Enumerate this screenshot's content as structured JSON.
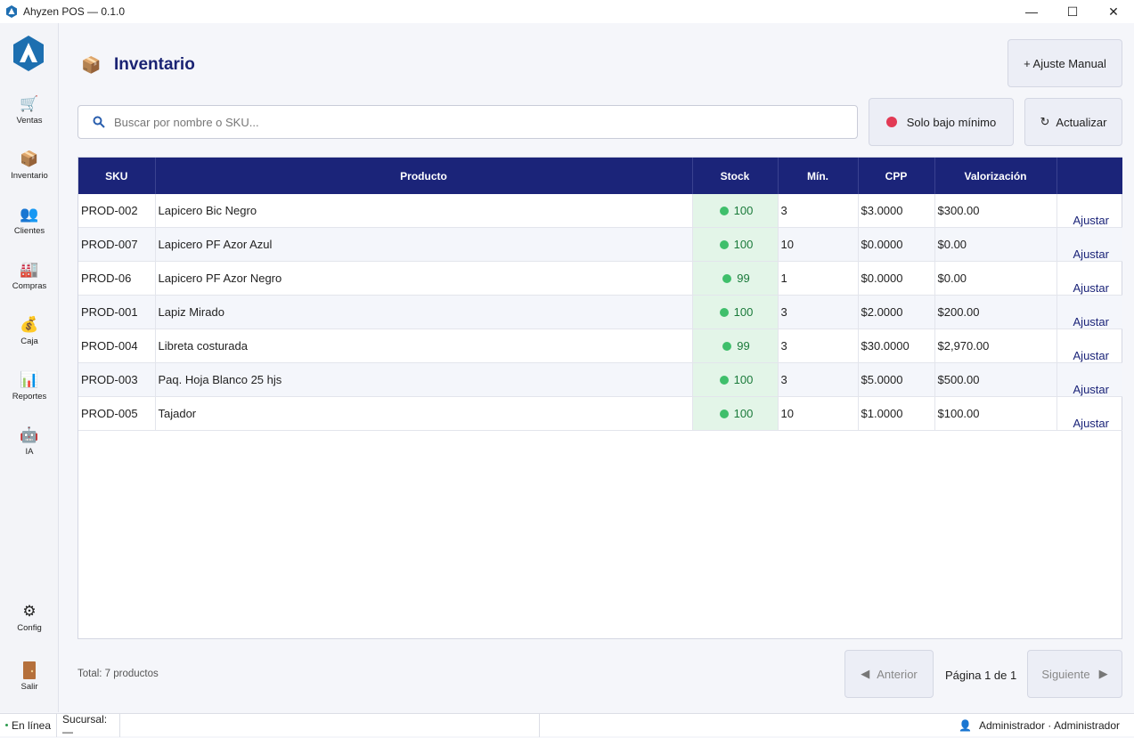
{
  "window": {
    "title": "Ahyzen POS — 0.1.0",
    "minimize": "—",
    "maximize": "☐",
    "close": "✕"
  },
  "sidebar": {
    "items": [
      {
        "label": "Ventas",
        "icon": "shopping-cart-icon"
      },
      {
        "label": "Inventario",
        "icon": "package-icon"
      },
      {
        "label": "Clientes",
        "icon": "users-icon"
      },
      {
        "label": "Compras",
        "icon": "factory-icon"
      },
      {
        "label": "Caja",
        "icon": "money-bag-icon"
      },
      {
        "label": "Reportes",
        "icon": "bar-chart-icon"
      },
      {
        "label": "IA",
        "icon": "robot-icon"
      }
    ],
    "config": {
      "label": "Config",
      "icon": "gear-icon"
    },
    "exit": {
      "label": "Salir",
      "icon": "door-icon"
    }
  },
  "header": {
    "title": "Inventario",
    "manual_adjust": "+ Ajuste Manual"
  },
  "search": {
    "placeholder": "Buscar por nombre o SKU..."
  },
  "filters": {
    "low_stock": "Solo bajo mínimo",
    "refresh": "Actualizar"
  },
  "table": {
    "columns": [
      "SKU",
      "Producto",
      "Stock",
      "Mín.",
      "CPP",
      "Valorización",
      ""
    ],
    "action_label": "Ajustar",
    "rows": [
      {
        "sku": "PROD-002",
        "product": "Lapicero Bic Negro",
        "stock": "100",
        "min": "3",
        "cpp": "$3.0000",
        "value": "$300.00"
      },
      {
        "sku": "PROD-007",
        "product": "Lapicero PF Azor Azul",
        "stock": "100",
        "min": "10",
        "cpp": "$0.0000",
        "value": "$0.00"
      },
      {
        "sku": "PROD-06",
        "product": "Lapicero PF Azor Negro",
        "stock": "99",
        "min": "1",
        "cpp": "$0.0000",
        "value": "$0.00"
      },
      {
        "sku": "PROD-001",
        "product": "Lapiz Mirado",
        "stock": "100",
        "min": "3",
        "cpp": "$2.0000",
        "value": "$200.00"
      },
      {
        "sku": "PROD-004",
        "product": "Libreta costurada",
        "stock": "99",
        "min": "3",
        "cpp": "$30.0000",
        "value": "$2,970.00"
      },
      {
        "sku": "PROD-003",
        "product": "Paq. Hoja Blanco 25 hjs",
        "stock": "100",
        "min": "3",
        "cpp": "$5.0000",
        "value": "$500.00"
      },
      {
        "sku": "PROD-005",
        "product": "Tajador",
        "stock": "100",
        "min": "10",
        "cpp": "$1.0000",
        "value": "$100.00"
      }
    ]
  },
  "footer": {
    "total": "Total: 7 productos",
    "prev": "Anterior",
    "page": "Página 1 de 1",
    "next": "Siguiente"
  },
  "status": {
    "online": "En línea",
    "branch": "Sucursal: —",
    "user": "Administrador · Administrador"
  },
  "colors": {
    "primary": "#1b2479",
    "stock_bg": "#e3f5e8",
    "stock_dot": "#3fbf6b",
    "low_dot": "#e23a55"
  }
}
